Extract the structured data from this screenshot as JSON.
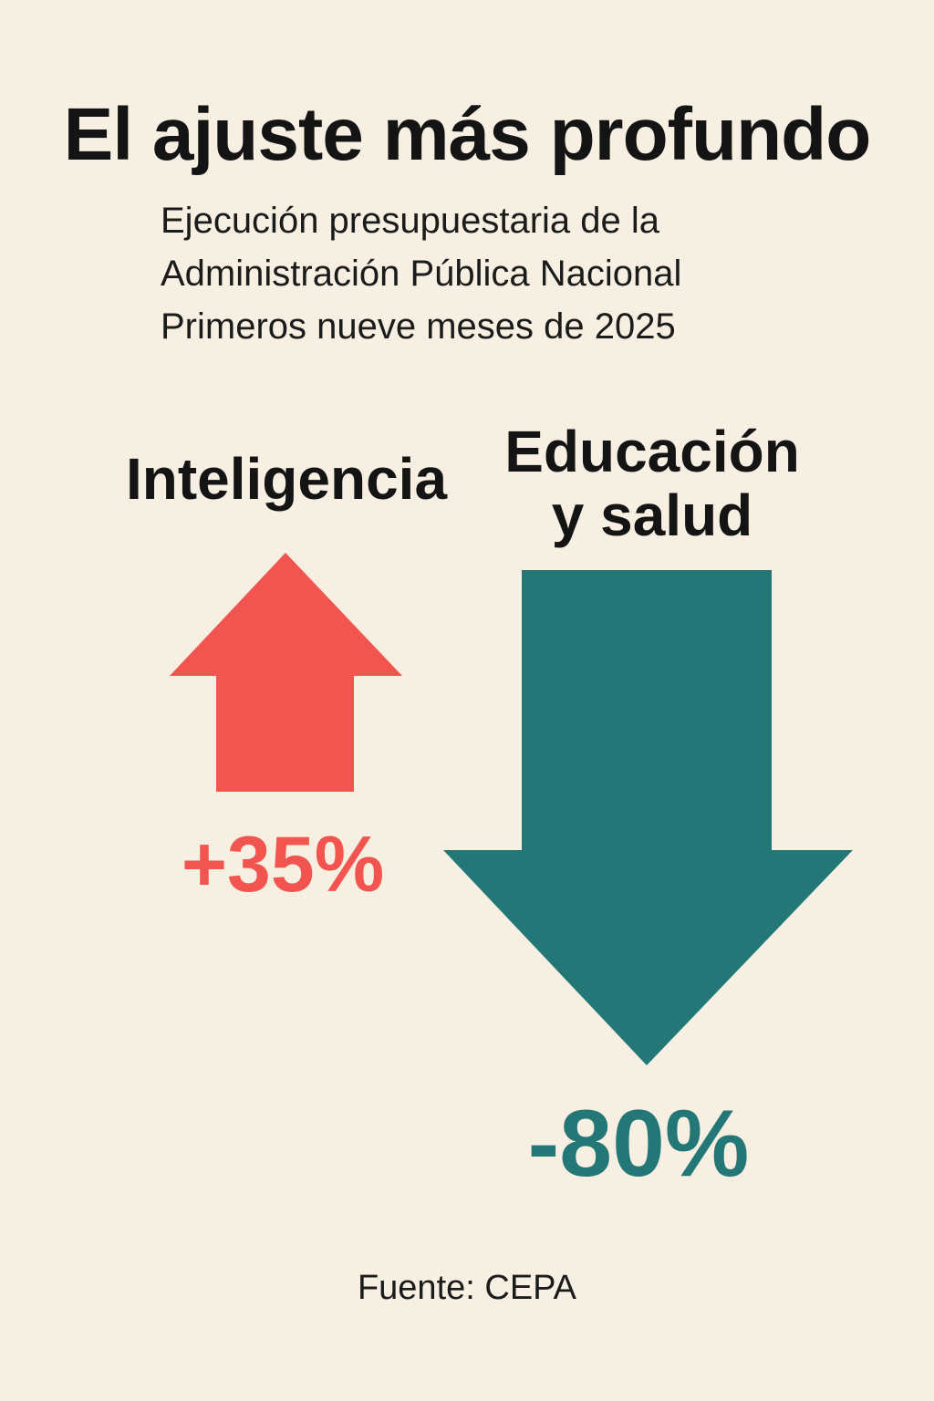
{
  "title": "El ajuste más profundo",
  "subtitle_lines": [
    "Ejecución presupuestaria de la",
    "Administración Pública Nacional",
    "Primeros nueve meses de 2025"
  ],
  "source": "Fuente: CEPA",
  "colors": {
    "background": "#f7f0e2",
    "increase": "#f2554f",
    "decrease": "#237877",
    "text": "#141414"
  },
  "chart_data": {
    "type": "bar",
    "title": "El ajuste más profundo",
    "categories": [
      "Inteligencia",
      "Educación y salud"
    ],
    "category_lines": [
      [
        "Inteligencia"
      ],
      [
        "Educación",
        "y salud"
      ]
    ],
    "values": [
      35,
      -80
    ],
    "value_labels": [
      "+35%",
      "-80%"
    ],
    "units": "%",
    "directions": [
      "up-arrow",
      "down-arrow"
    ],
    "series_colors": [
      "#f2554f",
      "#237877"
    ]
  }
}
